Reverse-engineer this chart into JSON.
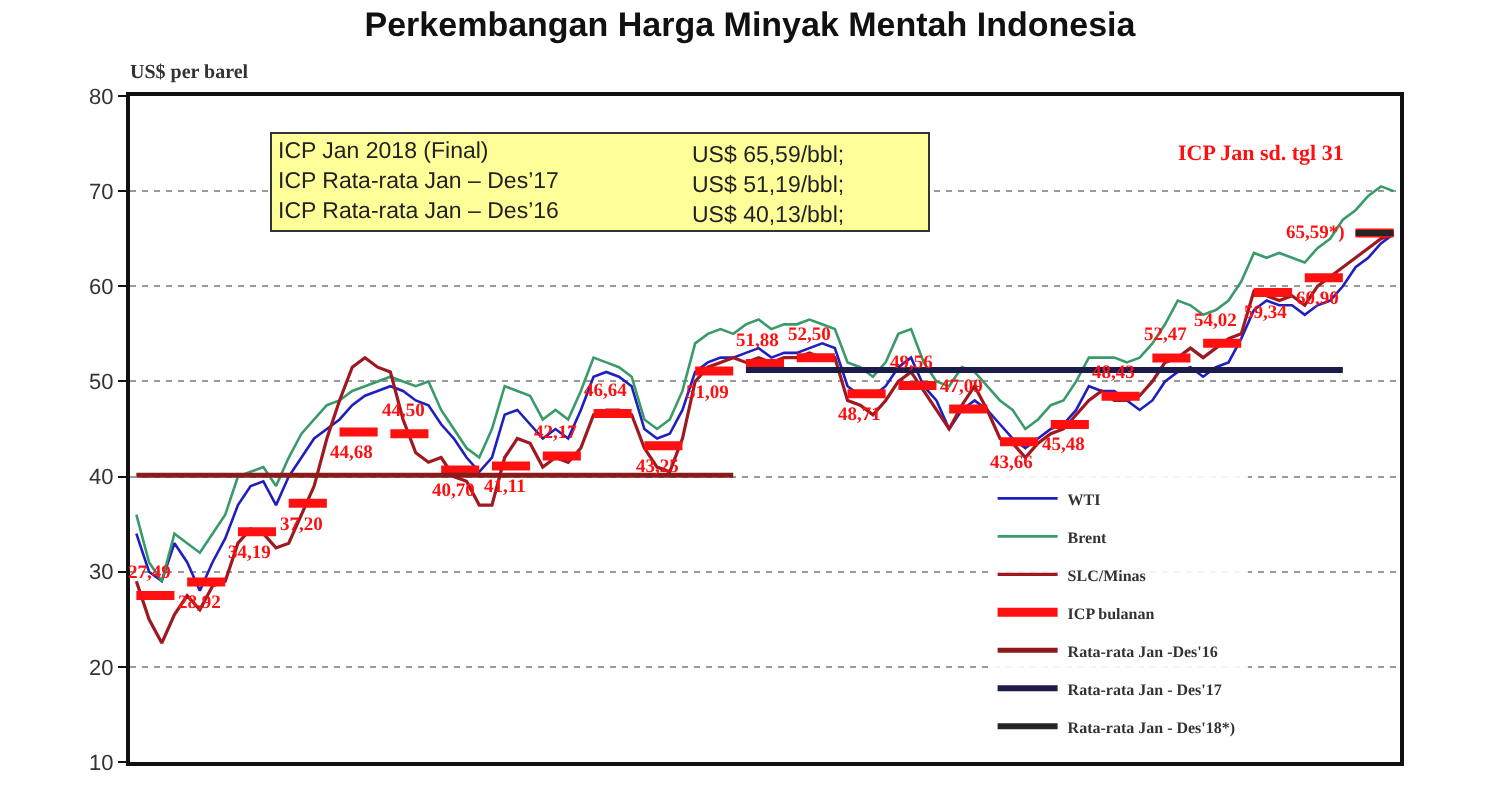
{
  "chart_data": {
    "type": "line",
    "title": "Perkembangan Harga Minyak Mentah Indonesia",
    "ylabel": "US$ per barel",
    "categories": [
      null,
      null,
      null,
      null,
      null,
      null,
      null,
      null,
      null,
      null,
      null,
      null,
      null,
      null,
      null,
      null,
      null,
      null,
      null,
      null,
      null,
      null,
      null,
      null,
      null,
      null,
      null,
      null,
      null,
      null,
      null,
      null,
      null,
      null,
      null,
      null,
      null,
      null,
      null,
      null,
      null,
      null,
      null,
      null,
      null,
      null,
      null,
      null,
      null,
      null,
      null,
      null,
      null,
      null,
      null,
      null,
      null,
      null,
      null,
      null,
      null,
      null,
      null,
      null,
      null,
      null,
      null,
      null,
      null,
      null,
      null,
      null,
      null,
      null,
      null,
      null,
      null,
      null,
      null,
      null,
      null,
      null,
      null,
      null,
      null,
      null,
      null,
      null,
      null,
      null,
      null,
      null,
      null,
      null,
      null,
      null,
      null,
      null,
      null,
      null
    ],
    "ylim": [
      10,
      80
    ],
    "yticks": [
      10,
      20,
      30,
      40,
      50,
      60,
      70,
      80
    ],
    "grid": "y",
    "legend": "bottom right",
    "series": [
      {
        "name": "WTI",
        "color": "#1f1fbf",
        "values": [
          34,
          30,
          29,
          33,
          31,
          28,
          31,
          33.5,
          37,
          39,
          39.5,
          37,
          40,
          42,
          44,
          45,
          46,
          47.5,
          48.5,
          49,
          49.5,
          49,
          48,
          47.5,
          45.5,
          44,
          42,
          40.5,
          42,
          46.5,
          47,
          45.5,
          44,
          45,
          44,
          47,
          50.5,
          51,
          50.5,
          49.5,
          45,
          44,
          44.5,
          47,
          51,
          52,
          52.5,
          52.5,
          53,
          53.5,
          52.5,
          53,
          53,
          53.5,
          54,
          53.5,
          49.5,
          48.5,
          48.5,
          49.5,
          51.5,
          52.5,
          49.5,
          48,
          45,
          47,
          48,
          47,
          45.5,
          44,
          43,
          44,
          45,
          45.5,
          47,
          49.5,
          49,
          49,
          48,
          47,
          48,
          50,
          51,
          51.5,
          50.5,
          51.5,
          52,
          54.5,
          57.5,
          58.5,
          58,
          58,
          57,
          58,
          58.5,
          60,
          62,
          63,
          64.5,
          65.5
        ]
      },
      {
        "name": "Brent",
        "color": "#3a9a6a",
        "values": [
          36,
          31,
          29,
          34,
          33,
          32,
          34,
          36,
          40,
          40.5,
          41,
          39,
          42,
          44.5,
          46,
          47.5,
          48,
          49,
          49.5,
          50,
          50.5,
          50,
          49.5,
          50,
          47,
          45,
          43,
          42,
          45,
          49.5,
          49,
          48.5,
          46,
          47,
          46,
          49,
          52.5,
          52,
          51.5,
          50.5,
          46,
          45,
          46,
          49,
          54,
          55,
          55.5,
          55,
          56,
          56.5,
          55.5,
          56,
          56,
          56.5,
          56,
          55.5,
          52,
          51.5,
          50.5,
          52,
          55,
          55.5,
          52,
          50,
          49.5,
          51.5,
          51,
          49.5,
          48,
          47,
          45,
          46,
          47.5,
          48,
          50,
          52.5,
          52.5,
          52.5,
          52,
          52.5,
          54,
          56,
          58.5,
          58,
          57,
          57.5,
          58.5,
          60.5,
          63.5,
          63,
          63.5,
          63,
          62.5,
          64,
          65,
          67,
          68,
          69.5,
          70.5,
          70
        ]
      },
      {
        "name": "SLC/Minas",
        "color": "#a01820",
        "values": [
          29,
          25,
          22.5,
          25.5,
          27.5,
          26,
          28.5,
          29,
          33,
          34.5,
          34,
          32.5,
          33,
          36,
          39,
          44,
          48,
          51.5,
          52.5,
          51.5,
          51,
          46,
          42.5,
          41.5,
          42,
          40,
          39.5,
          37,
          37,
          42,
          44,
          43.5,
          41,
          42,
          41.5,
          43,
          46.5,
          47,
          47,
          46.5,
          43,
          41,
          40.5,
          44,
          50,
          51.5,
          52,
          52.5,
          52,
          52.5,
          52,
          52.5,
          52.5,
          53,
          52.5,
          52.5,
          48,
          47.5,
          46.5,
          48,
          50,
          51,
          49,
          47,
          45,
          47.5,
          49.5,
          47,
          44,
          43.5,
          42,
          43.5,
          44.5,
          45,
          46.5,
          48,
          49,
          48,
          48,
          48.5,
          50,
          52,
          52.5,
          53.5,
          52.5,
          53.5,
          54.5,
          55,
          59.5,
          59,
          58.5,
          59,
          58,
          60,
          61,
          62,
          63,
          64,
          65,
          65.5
        ]
      },
      {
        "name": "ICP bulanan",
        "type": "step",
        "color": "#ff1010",
        "values": [
          27.49,
          27.49,
          27.49,
          27.49,
          28.92,
          28.92,
          28.92,
          28.92,
          34.19,
          34.19,
          34.19,
          34.19,
          37.2,
          37.2,
          37.2,
          37.2,
          44.68,
          44.68,
          44.68,
          44.68,
          44.5,
          44.5,
          44.5,
          44.5,
          40.7,
          40.7,
          40.7,
          40.7,
          41.11,
          41.11,
          41.11,
          41.11,
          42.17,
          42.17,
          42.17,
          42.17,
          46.64,
          46.64,
          46.64,
          46.64,
          43.25,
          43.25,
          43.25,
          43.25,
          51.09,
          51.09,
          51.09,
          51.09,
          51.88,
          51.88,
          51.88,
          51.88,
          52.5,
          52.5,
          52.5,
          52.5,
          48.71,
          48.71,
          48.71,
          48.71,
          49.56,
          49.56,
          49.56,
          49.56,
          47.09,
          47.09,
          47.09,
          47.09,
          43.66,
          43.66,
          43.66,
          43.66,
          45.48,
          45.48,
          45.48,
          45.48,
          48.43,
          48.43,
          48.43,
          48.43,
          52.47,
          52.47,
          52.47,
          52.47,
          54.02,
          54.02,
          54.02,
          54.02,
          59.34,
          59.34,
          59.34,
          59.34,
          60.9,
          60.9,
          60.9,
          60.9,
          65.59,
          65.59,
          65.59,
          65.59
        ],
        "value_labels": [
          null,
          "27,49",
          null,
          null,
          null,
          "28,92",
          null,
          null,
          null,
          "34,19",
          null,
          null,
          null,
          "37,20",
          null,
          null,
          null,
          "44,68",
          null,
          null,
          null,
          "44,50",
          null,
          null,
          null,
          "40,70",
          null,
          null,
          null,
          "41,11",
          null,
          null,
          null,
          "42,17",
          null,
          null,
          null,
          "46,64",
          null,
          null,
          null,
          "43,25",
          null,
          null,
          null,
          "51,09",
          null,
          null,
          null,
          "51,88",
          null,
          null,
          null,
          "52,50",
          null,
          null,
          null,
          "48,71",
          null,
          null,
          null,
          "49,56",
          null,
          null,
          null,
          "47,09",
          null,
          null,
          null,
          "43,66",
          null,
          null,
          null,
          "45,48",
          null,
          null,
          null,
          "48,43",
          null,
          null,
          null,
          "52,47",
          null,
          null,
          null,
          "54,02",
          null,
          null,
          null,
          "59,34",
          null,
          null,
          null,
          "60,90",
          null,
          null,
          "65,59*)",
          null,
          null,
          null
        ]
      },
      {
        "name": "Rata-rata Jan -Des'16",
        "color": "#8b1a1a",
        "values": [
          40.13,
          40.13,
          40.13,
          40.13,
          40.13,
          40.13,
          40.13,
          40.13,
          40.13,
          40.13,
          40.13,
          40.13,
          40.13,
          40.13,
          40.13,
          40.13,
          40.13,
          40.13,
          40.13,
          40.13,
          40.13,
          40.13,
          40.13,
          40.13,
          40.13,
          40.13,
          40.13,
          40.13,
          40.13,
          40.13,
          40.13,
          40.13,
          40.13,
          40.13,
          40.13,
          40.13,
          40.13,
          40.13,
          40.13,
          40.13,
          40.13,
          40.13,
          40.13,
          40.13,
          40.13,
          40.13,
          40.13,
          40.13,
          null,
          null,
          null,
          null,
          null,
          null,
          null,
          null,
          null,
          null,
          null,
          null,
          null,
          null,
          null,
          null,
          null,
          null,
          null,
          null,
          null,
          null,
          null,
          null,
          null,
          null,
          null,
          null,
          null,
          null,
          null,
          null,
          null,
          null,
          null,
          null,
          null,
          null,
          null,
          null,
          null,
          null,
          null,
          null,
          null,
          null,
          null,
          null,
          null,
          null,
          null,
          null
        ]
      },
      {
        "name": "Rata-rata Jan - Des'17",
        "color": "#1c1c4a",
        "values": [
          null,
          null,
          null,
          null,
          null,
          null,
          null,
          null,
          null,
          null,
          null,
          null,
          null,
          null,
          null,
          null,
          null,
          null,
          null,
          null,
          null,
          null,
          null,
          null,
          null,
          null,
          null,
          null,
          null,
          null,
          null,
          null,
          null,
          null,
          null,
          null,
          null,
          null,
          null,
          null,
          null,
          null,
          null,
          null,
          null,
          null,
          null,
          null,
          51.19,
          51.19,
          51.19,
          51.19,
          51.19,
          51.19,
          51.19,
          51.19,
          51.19,
          51.19,
          51.19,
          51.19,
          51.19,
          51.19,
          51.19,
          51.19,
          51.19,
          51.19,
          51.19,
          51.19,
          51.19,
          51.19,
          51.19,
          51.19,
          51.19,
          51.19,
          51.19,
          51.19,
          51.19,
          51.19,
          51.19,
          51.19,
          51.19,
          51.19,
          51.19,
          51.19,
          51.19,
          51.19,
          51.19,
          51.19,
          51.19,
          51.19,
          51.19,
          51.19,
          51.19,
          51.19,
          51.19,
          51.19,
          null,
          null,
          null,
          null
        ]
      },
      {
        "name": "Rata-rata Jan - Des'18*)",
        "color": "#262626",
        "values": [
          null,
          null,
          null,
          null,
          null,
          null,
          null,
          null,
          null,
          null,
          null,
          null,
          null,
          null,
          null,
          null,
          null,
          null,
          null,
          null,
          null,
          null,
          null,
          null,
          null,
          null,
          null,
          null,
          null,
          null,
          null,
          null,
          null,
          null,
          null,
          null,
          null,
          null,
          null,
          null,
          null,
          null,
          null,
          null,
          null,
          null,
          null,
          null,
          null,
          null,
          null,
          null,
          null,
          null,
          null,
          null,
          null,
          null,
          null,
          null,
          null,
          null,
          null,
          null,
          null,
          null,
          null,
          null,
          null,
          null,
          null,
          null,
          null,
          null,
          null,
          null,
          null,
          null,
          null,
          null,
          null,
          null,
          null,
          null,
          null,
          null,
          null,
          null,
          null,
          null,
          null,
          null,
          null,
          null,
          null,
          null,
          65.59,
          65.59,
          65.59,
          65.59
        ]
      }
    ],
    "annotations": [
      "ICP Jan 2018 (Final)\nICP Rata-rata Jan – Des’17\nICP Rata-rata Jan – Des’16",
      "US$ 65,59/bbl;\nUS$ 51,19/bbl;\nUS$ 40,13/bbl;",
      "ICP Jan sd. tgl 31"
    ]
  }
}
